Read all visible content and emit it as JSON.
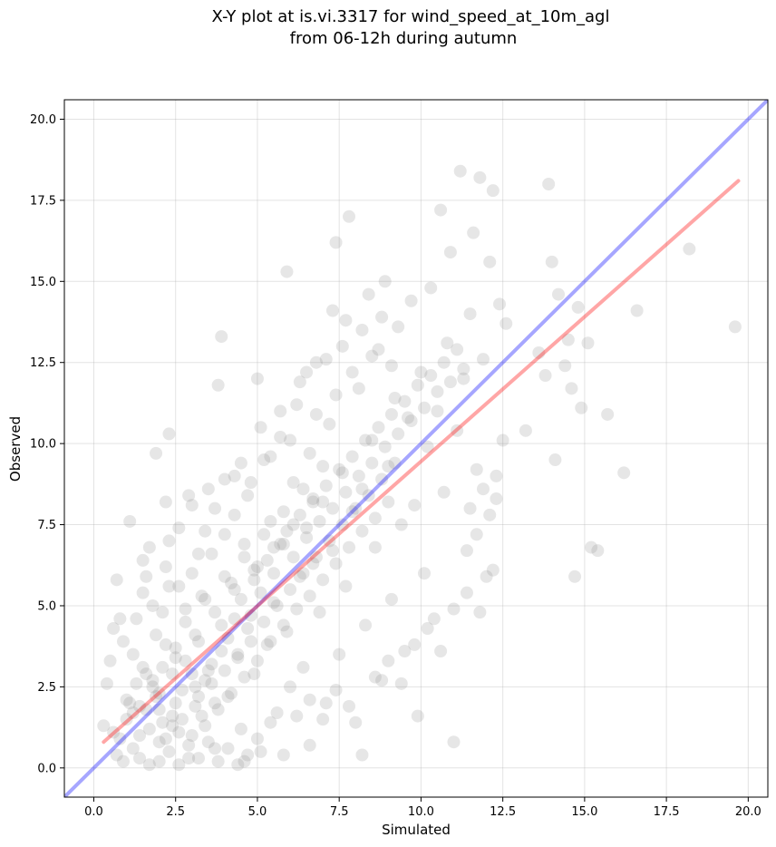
{
  "chart_data": {
    "type": "scatter",
    "title_line1": "X-Y plot at is.vi.3317 for wind_speed_at_10m_agl",
    "title_line2": "from 06-12h during autumn",
    "xlabel": "Simulated",
    "ylabel": "Observed",
    "xlim": [
      -0.9,
      20.6
    ],
    "ylim": [
      -0.9,
      20.6
    ],
    "xticks": [
      0.0,
      2.5,
      5.0,
      7.5,
      10.0,
      12.5,
      15.0,
      17.5,
      20.0
    ],
    "xtick_labels": [
      "0.0",
      "2.5",
      "5.0",
      "7.5",
      "10.0",
      "12.5",
      "15.0",
      "17.5",
      "20.0"
    ],
    "yticks": [
      0.0,
      2.5,
      5.0,
      7.5,
      10.0,
      12.5,
      15.0,
      17.5,
      20.0
    ],
    "ytick_labels": [
      "0.0",
      "2.5",
      "5.0",
      "7.5",
      "10.0",
      "12.5",
      "15.0",
      "17.5",
      "20.0"
    ],
    "grid": true,
    "point_color": "#808080",
    "points": [
      [
        0.3,
        1.3
      ],
      [
        0.5,
        3.3
      ],
      [
        0.6,
        4.3
      ],
      [
        0.7,
        5.8
      ],
      [
        0.8,
        4.6
      ],
      [
        1.0,
        2.1
      ],
      [
        1.1,
        7.6
      ],
      [
        1.2,
        3.5
      ],
      [
        1.4,
        1.0
      ],
      [
        1.5,
        6.4
      ],
      [
        1.5,
        5.4
      ],
      [
        1.6,
        2.9
      ],
      [
        1.7,
        6.8
      ],
      [
        1.8,
        5.0
      ],
      [
        1.9,
        9.7
      ],
      [
        1.9,
        4.1
      ],
      [
        2.0,
        0.8
      ],
      [
        2.0,
        2.3
      ],
      [
        2.1,
        3.1
      ],
      [
        2.2,
        6.2
      ],
      [
        2.2,
        8.2
      ],
      [
        2.3,
        10.3
      ],
      [
        2.3,
        5.6
      ],
      [
        2.4,
        1.6
      ],
      [
        2.5,
        3.7
      ],
      [
        2.6,
        7.4
      ],
      [
        2.7,
        2.4
      ],
      [
        2.8,
        4.9
      ],
      [
        2.9,
        0.3
      ],
      [
        3.0,
        6.0
      ],
      [
        3.0,
        8.1
      ],
      [
        3.1,
        1.9
      ],
      [
        3.2,
        3.9
      ],
      [
        3.3,
        5.3
      ],
      [
        3.4,
        2.7
      ],
      [
        3.5,
        8.6
      ],
      [
        3.6,
        6.6
      ],
      [
        3.7,
        0.6
      ],
      [
        3.8,
        11.8
      ],
      [
        3.9,
        13.3
      ],
      [
        3.9,
        4.4
      ],
      [
        4.0,
        7.2
      ],
      [
        4.1,
        2.2
      ],
      [
        4.2,
        5.7
      ],
      [
        4.3,
        9.0
      ],
      [
        4.4,
        3.4
      ],
      [
        4.5,
        1.2
      ],
      [
        4.6,
        6.9
      ],
      [
        4.7,
        8.4
      ],
      [
        4.8,
        4.7
      ],
      [
        4.9,
        2.9
      ],
      [
        5.0,
        12.0
      ],
      [
        5.0,
        6.2
      ],
      [
        5.1,
        0.5
      ],
      [
        5.2,
        9.5
      ],
      [
        5.3,
        3.8
      ],
      [
        5.4,
        7.6
      ],
      [
        5.5,
        5.1
      ],
      [
        5.6,
        1.7
      ],
      [
        5.7,
        10.2
      ],
      [
        5.8,
        6.9
      ],
      [
        5.9,
        15.3
      ],
      [
        5.9,
        4.2
      ],
      [
        6.0,
        2.5
      ],
      [
        6.1,
        8.8
      ],
      [
        6.2,
        11.2
      ],
      [
        6.3,
        5.9
      ],
      [
        6.4,
        3.1
      ],
      [
        6.5,
        7.4
      ],
      [
        6.6,
        9.7
      ],
      [
        6.6,
        0.7
      ],
      [
        6.7,
        6.3
      ],
      [
        6.8,
        12.5
      ],
      [
        6.9,
        4.8
      ],
      [
        7.0,
        8.2
      ],
      [
        7.1,
        2.0
      ],
      [
        7.2,
        10.6
      ],
      [
        7.3,
        14.1
      ],
      [
        7.3,
        6.7
      ],
      [
        7.4,
        16.2
      ],
      [
        7.5,
        3.5
      ],
      [
        7.6,
        9.1
      ],
      [
        7.7,
        13.8
      ],
      [
        7.7,
        5.6
      ],
      [
        7.8,
        17.0
      ],
      [
        7.9,
        7.9
      ],
      [
        8.0,
        1.4
      ],
      [
        8.1,
        11.7
      ],
      [
        8.2,
        8.6
      ],
      [
        8.3,
        4.4
      ],
      [
        8.4,
        14.6
      ],
      [
        8.5,
        10.1
      ],
      [
        8.6,
        6.8
      ],
      [
        8.7,
        12.9
      ],
      [
        8.8,
        2.7
      ],
      [
        8.9,
        15.0
      ],
      [
        9.0,
        9.3
      ],
      [
        9.1,
        5.2
      ],
      [
        9.2,
        11.4
      ],
      [
        9.3,
        13.6
      ],
      [
        9.4,
        7.5
      ],
      [
        9.5,
        3.6
      ],
      [
        9.6,
        10.8
      ],
      [
        9.7,
        14.4
      ],
      [
        9.8,
        8.1
      ],
      [
        9.9,
        1.6
      ],
      [
        10.0,
        12.2
      ],
      [
        10.1,
        6.0
      ],
      [
        10.2,
        9.9
      ],
      [
        10.3,
        14.8
      ],
      [
        10.4,
        4.6
      ],
      [
        10.5,
        11.0
      ],
      [
        10.6,
        17.2
      ],
      [
        10.7,
        8.5
      ],
      [
        10.8,
        13.1
      ],
      [
        10.9,
        15.9
      ],
      [
        11.0,
        0.8
      ],
      [
        11.1,
        10.4
      ],
      [
        11.2,
        18.4
      ],
      [
        11.3,
        12.0
      ],
      [
        11.4,
        6.7
      ],
      [
        11.5,
        14.0
      ],
      [
        11.6,
        16.5
      ],
      [
        11.7,
        9.2
      ],
      [
        11.8,
        18.2
      ],
      [
        11.9,
        12.6
      ],
      [
        12.0,
        5.9
      ],
      [
        12.1,
        15.6
      ],
      [
        12.2,
        17.8
      ],
      [
        12.3,
        8.3
      ],
      [
        12.4,
        14.3
      ],
      [
        12.5,
        10.1
      ],
      [
        12.6,
        13.7
      ],
      [
        13.2,
        10.4
      ],
      [
        13.6,
        12.8
      ],
      [
        13.8,
        12.1
      ],
      [
        13.9,
        18.0
      ],
      [
        14.0,
        15.6
      ],
      [
        14.1,
        9.5
      ],
      [
        14.2,
        14.6
      ],
      [
        14.4,
        12.4
      ],
      [
        14.5,
        13.2
      ],
      [
        14.6,
        11.7
      ],
      [
        14.7,
        5.9
      ],
      [
        14.8,
        14.2
      ],
      [
        14.9,
        11.1
      ],
      [
        15.1,
        13.1
      ],
      [
        15.2,
        6.8
      ],
      [
        15.4,
        6.7
      ],
      [
        15.7,
        10.9
      ],
      [
        16.2,
        9.1
      ],
      [
        16.6,
        14.1
      ],
      [
        18.2,
        16.0
      ],
      [
        19.6,
        13.6
      ],
      [
        1.0,
        1.5
      ],
      [
        1.3,
        2.6
      ],
      [
        1.6,
        1.8
      ],
      [
        1.9,
        2.2
      ],
      [
        2.1,
        1.4
      ],
      [
        2.4,
        2.9
      ],
      [
        2.6,
        1.1
      ],
      [
        2.8,
        3.3
      ],
      [
        3.1,
        2.5
      ],
      [
        3.3,
        1.6
      ],
      [
        3.5,
        3.0
      ],
      [
        3.7,
        2.0
      ],
      [
        3.9,
        3.6
      ],
      [
        4.1,
        4.0
      ],
      [
        4.3,
        4.6
      ],
      [
        4.5,
        5.2
      ],
      [
        4.7,
        4.3
      ],
      [
        4.9,
        5.8
      ],
      [
        5.1,
        5.4
      ],
      [
        5.3,
        6.4
      ],
      [
        5.5,
        6.0
      ],
      [
        5.7,
        6.9
      ],
      [
        5.9,
        7.3
      ],
      [
        6.1,
        6.5
      ],
      [
        6.3,
        7.8
      ],
      [
        6.5,
        7.1
      ],
      [
        6.7,
        8.3
      ],
      [
        6.9,
        7.6
      ],
      [
        7.1,
        8.7
      ],
      [
        7.3,
        8.0
      ],
      [
        7.5,
        9.2
      ],
      [
        7.7,
        8.5
      ],
      [
        7.9,
        9.6
      ],
      [
        8.1,
        9.0
      ],
      [
        8.3,
        10.1
      ],
      [
        8.5,
        9.4
      ],
      [
        8.7,
        10.5
      ],
      [
        8.9,
        9.9
      ],
      [
        9.1,
        10.9
      ],
      [
        9.3,
        10.3
      ],
      [
        9.5,
        11.3
      ],
      [
        9.7,
        10.7
      ],
      [
        9.9,
        11.8
      ],
      [
        10.1,
        11.1
      ],
      [
        10.3,
        12.1
      ],
      [
        10.5,
        11.6
      ],
      [
        10.7,
        12.5
      ],
      [
        10.9,
        11.9
      ],
      [
        11.1,
        12.9
      ],
      [
        11.3,
        12.3
      ],
      [
        11.5,
        8.0
      ],
      [
        11.7,
        7.2
      ],
      [
        11.9,
        8.6
      ],
      [
        12.1,
        7.8
      ],
      [
        12.3,
        9.0
      ],
      [
        0.8,
        0.9
      ],
      [
        1.2,
        0.6
      ],
      [
        1.4,
        1.9
      ],
      [
        1.7,
        1.2
      ],
      [
        2.0,
        1.8
      ],
      [
        2.2,
        0.9
      ],
      [
        2.5,
        2.0
      ],
      [
        2.7,
        1.5
      ],
      [
        3.0,
        1.0
      ],
      [
        3.2,
        2.2
      ],
      [
        3.4,
        1.3
      ],
      [
        3.6,
        2.6
      ],
      [
        3.8,
        1.8
      ],
      [
        4.0,
        3.0
      ],
      [
        4.2,
        2.3
      ],
      [
        4.4,
        3.5
      ],
      [
        4.6,
        2.8
      ],
      [
        4.8,
        3.9
      ],
      [
        5.0,
        3.3
      ],
      [
        5.2,
        4.5
      ],
      [
        5.4,
        3.9
      ],
      [
        5.6,
        5.0
      ],
      [
        5.8,
        4.4
      ],
      [
        6.0,
        5.5
      ],
      [
        6.2,
        4.9
      ],
      [
        6.4,
        6.0
      ],
      [
        6.6,
        5.3
      ],
      [
        6.8,
        6.5
      ],
      [
        7.0,
        5.8
      ],
      [
        7.2,
        7.0
      ],
      [
        7.4,
        6.3
      ],
      [
        7.6,
        7.5
      ],
      [
        7.8,
        6.8
      ],
      [
        8.0,
        8.0
      ],
      [
        8.2,
        7.3
      ],
      [
        8.4,
        8.4
      ],
      [
        8.6,
        7.7
      ],
      [
        8.8,
        8.9
      ],
      [
        9.0,
        8.2
      ],
      [
        9.2,
        9.4
      ],
      [
        0.4,
        2.6
      ],
      [
        0.9,
        3.9
      ],
      [
        1.3,
        4.6
      ],
      [
        1.6,
        5.9
      ],
      [
        2.1,
        4.8
      ],
      [
        2.3,
        7.0
      ],
      [
        2.6,
        5.6
      ],
      [
        2.9,
        8.4
      ],
      [
        3.2,
        6.6
      ],
      [
        3.4,
        7.3
      ],
      [
        3.7,
        8.0
      ],
      [
        4.0,
        8.9
      ],
      [
        4.3,
        7.8
      ],
      [
        4.5,
        9.4
      ],
      [
        4.8,
        8.8
      ],
      [
        5.1,
        10.5
      ],
      [
        5.4,
        9.6
      ],
      [
        5.7,
        11.0
      ],
      [
        6.0,
        10.1
      ],
      [
        6.3,
        11.9
      ],
      [
        6.5,
        12.2
      ],
      [
        6.8,
        10.9
      ],
      [
        7.1,
        12.6
      ],
      [
        7.4,
        11.5
      ],
      [
        7.6,
        13.0
      ],
      [
        7.9,
        12.2
      ],
      [
        8.2,
        13.5
      ],
      [
        8.5,
        12.7
      ],
      [
        8.8,
        13.9
      ],
      [
        9.1,
        12.4
      ],
      [
        4.6,
        0.2
      ],
      [
        5.0,
        0.9
      ],
      [
        5.4,
        1.4
      ],
      [
        5.8,
        0.4
      ],
      [
        6.2,
        1.6
      ],
      [
        6.6,
        2.1
      ],
      [
        7.0,
        1.5
      ],
      [
        7.4,
        2.4
      ],
      [
        7.8,
        1.9
      ],
      [
        8.2,
        0.4
      ],
      [
        8.6,
        2.8
      ],
      [
        9.0,
        3.3
      ],
      [
        9.4,
        2.6
      ],
      [
        9.8,
        3.8
      ],
      [
        10.2,
        4.3
      ],
      [
        10.6,
        3.6
      ],
      [
        11.0,
        4.9
      ],
      [
        11.4,
        5.4
      ],
      [
        11.8,
        4.8
      ],
      [
        12.2,
        6.1
      ],
      [
        1.1,
        2.0
      ],
      [
        1.5,
        3.1
      ],
      [
        1.8,
        2.7
      ],
      [
        2.2,
        3.8
      ],
      [
        2.5,
        3.4
      ],
      [
        2.8,
        4.5
      ],
      [
        3.1,
        4.1
      ],
      [
        3.4,
        5.2
      ],
      [
        3.7,
        4.8
      ],
      [
        4.0,
        5.9
      ],
      [
        4.3,
        5.5
      ],
      [
        4.6,
        6.5
      ],
      [
        4.9,
        6.1
      ],
      [
        5.2,
        7.2
      ],
      [
        5.5,
        6.8
      ],
      [
        5.8,
        7.9
      ],
      [
        6.1,
        7.5
      ],
      [
        6.4,
        8.6
      ],
      [
        6.7,
        8.2
      ],
      [
        7.0,
        9.3
      ],
      [
        2.0,
        0.2
      ],
      [
        2.3,
        0.5
      ],
      [
        2.6,
        0.1
      ],
      [
        2.9,
        0.7
      ],
      [
        3.2,
        0.3
      ],
      [
        3.5,
        0.8
      ],
      [
        3.8,
        0.2
      ],
      [
        4.1,
        0.6
      ],
      [
        4.4,
        0.1
      ],
      [
        4.7,
        0.4
      ],
      [
        1.4,
        0.3
      ],
      [
        1.7,
        0.1
      ],
      [
        0.9,
        0.2
      ],
      [
        0.6,
        1.1
      ],
      [
        0.7,
        0.4
      ],
      [
        1.2,
        1.7
      ],
      [
        1.8,
        2.5
      ],
      [
        2.4,
        1.3
      ],
      [
        3.0,
        2.9
      ],
      [
        3.6,
        3.2
      ]
    ],
    "lines": [
      {
        "name": "identity",
        "color": "#0000ff",
        "opacity": 0.35,
        "x": [
          -0.9,
          20.6
        ],
        "y": [
          -0.9,
          20.6
        ]
      },
      {
        "name": "fit",
        "color": "#ff0000",
        "opacity": 0.35,
        "x": [
          0.3,
          19.7
        ],
        "y": [
          0.8,
          18.1
        ]
      }
    ]
  }
}
